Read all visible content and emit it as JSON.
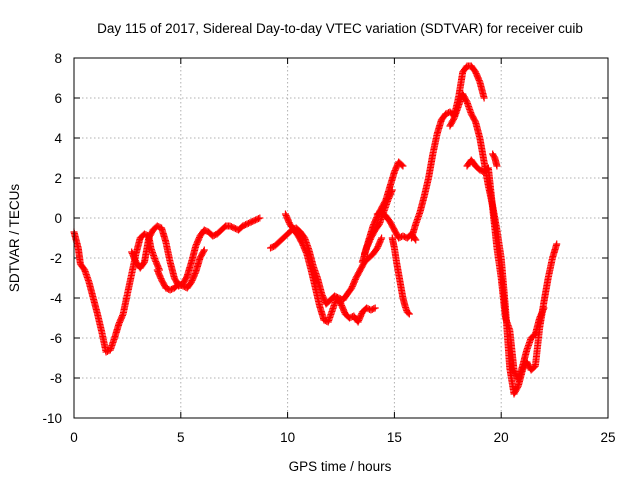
{
  "chart_data": {
    "type": "scatter",
    "title": "Day 115 of 2017, Sidereal Day-to-day VTEC variation (SDTVAR) for receiver cuib",
    "xlabel": "GPS time / hours",
    "ylabel": "SDTVAR / TECUs",
    "xlim": [
      0,
      25
    ],
    "ylim": [
      -10,
      8
    ],
    "xticks": [
      "0",
      "5",
      "10",
      "15",
      "20",
      "25"
    ],
    "yticks": [
      "-10",
      "-8",
      "-6",
      "-4",
      "-2",
      "0",
      "2",
      "4",
      "6",
      "8"
    ],
    "grid": true,
    "legend": "none",
    "marker": "plus",
    "color": "#ff0000",
    "series": [
      {
        "x": [
          0.0,
          0.2,
          0.3,
          0.5,
          0.7,
          0.9,
          1.1,
          1.3,
          1.5,
          1.7,
          1.9,
          2.1,
          2.3,
          2.5,
          2.7,
          2.9,
          3.1,
          3.3,
          3.5,
          3.6,
          3.8,
          4.0
        ],
        "y": [
          -0.7,
          -1.5,
          -2.3,
          -2.6,
          -3.2,
          -4.0,
          -4.8,
          -5.7,
          -6.7,
          -6.6,
          -6.0,
          -5.3,
          -4.8,
          -3.8,
          -2.8,
          -1.8,
          -1.0,
          -0.8,
          -0.9,
          -1.5,
          -2.1,
          -2.6
        ]
      },
      {
        "x": [
          2.7,
          2.9,
          3.1,
          3.3,
          3.5,
          3.7,
          3.9,
          4.1,
          4.3,
          4.5,
          4.7,
          4.9,
          5.1,
          5.3,
          5.5,
          5.7,
          5.9,
          6.1,
          6.3,
          6.5,
          6.7,
          6.9,
          7.1,
          7.3,
          7.5,
          7.7,
          7.9,
          8.1,
          8.3,
          8.5,
          8.7
        ],
        "y": [
          -1.7,
          -2.2,
          -2.5,
          -2.2,
          -1.0,
          -0.6,
          -0.4,
          -0.5,
          -1.2,
          -2.2,
          -3.0,
          -3.4,
          -3.3,
          -2.9,
          -2.2,
          -1.4,
          -0.9,
          -0.6,
          -0.7,
          -0.9,
          -0.8,
          -0.6,
          -0.4,
          -0.4,
          -0.5,
          -0.6,
          -0.4,
          -0.3,
          -0.2,
          -0.1,
          0.0
        ]
      },
      {
        "x": [
          3.9,
          4.1,
          4.3,
          4.5,
          4.7,
          4.9,
          5.1,
          5.3,
          5.5,
          5.7,
          5.9,
          6.1
        ],
        "y": [
          -2.6,
          -3.1,
          -3.5,
          -3.6,
          -3.5,
          -3.3,
          -3.4,
          -3.5,
          -3.2,
          -2.7,
          -2.0,
          -1.6
        ]
      },
      {
        "x": [
          9.2,
          9.4,
          9.6,
          9.8,
          10.0,
          10.2,
          10.4,
          10.6,
          10.8,
          11.0,
          11.2,
          11.4,
          11.6,
          11.8,
          12.0,
          12.2,
          12.4,
          12.6,
          12.8,
          13.0,
          13.2,
          13.4,
          13.6,
          13.8,
          14.0,
          14.2,
          14.4
        ],
        "y": [
          -1.5,
          -1.4,
          -1.2,
          -1.0,
          -0.8,
          -0.6,
          -0.5,
          -0.7,
          -1.0,
          -1.6,
          -2.4,
          -3.0,
          -3.8,
          -4.3,
          -4.1,
          -3.9,
          -4.0,
          -4.1,
          -3.8,
          -3.5,
          -3.0,
          -2.6,
          -2.2,
          -2.0,
          -1.8,
          -1.5,
          -1.0
        ]
      },
      {
        "x": [
          9.9,
          10.1,
          10.3,
          10.5,
          10.7,
          10.9,
          11.1,
          11.3,
          11.5,
          11.7,
          11.9,
          12.1,
          12.3,
          12.5,
          12.7,
          12.9,
          13.1,
          13.3,
          13.5,
          13.7,
          13.9,
          14.1
        ],
        "y": [
          0.2,
          -0.3,
          -0.6,
          -0.9,
          -1.3,
          -1.8,
          -2.6,
          -3.5,
          -4.4,
          -5.1,
          -5.2,
          -4.6,
          -4.0,
          -4.3,
          -4.8,
          -5.0,
          -4.9,
          -5.2,
          -4.7,
          -4.5,
          -4.6,
          -4.5
        ]
      },
      {
        "x": [
          13.5,
          13.7,
          13.9,
          14.1,
          14.3,
          14.5,
          14.7,
          14.9
        ],
        "y": [
          -2.2,
          -1.5,
          -1.0,
          -0.6,
          -0.3,
          0.3,
          0.9,
          1.4
        ]
      },
      {
        "x": [
          13.6,
          13.8,
          14.0,
          14.2,
          14.4,
          14.6,
          14.8,
          15.0,
          15.2,
          15.4
        ],
        "y": [
          -1.8,
          -1.1,
          -0.4,
          0.1,
          0.5,
          0.9,
          1.6,
          2.3,
          2.8,
          2.6
        ]
      },
      {
        "x": [
          14.2,
          14.4,
          14.6,
          14.8,
          15.0,
          15.2,
          15.4,
          15.6,
          15.8,
          16.0
        ],
        "y": [
          0.2,
          0.3,
          0.1,
          -0.2,
          -0.6,
          -1.0,
          -0.9,
          -1.0,
          -0.8,
          -1.1
        ]
      },
      {
        "x": [
          14.9,
          15.0,
          15.1,
          15.2,
          15.3,
          15.4,
          15.5,
          15.6,
          15.7
        ],
        "y": [
          -1.0,
          -1.5,
          -2.2,
          -2.8,
          -3.4,
          -4.0,
          -4.4,
          -4.7,
          -4.8
        ]
      },
      {
        "x": [
          15.8,
          16.0,
          16.2,
          16.4,
          16.6,
          16.8,
          17.0,
          17.2,
          17.4,
          17.6,
          17.8,
          18.0,
          18.2,
          18.4,
          18.6,
          18.8,
          19.0,
          19.2
        ],
        "y": [
          -1.0,
          -0.3,
          0.3,
          1.1,
          2.0,
          3.2,
          4.2,
          4.9,
          5.2,
          5.3,
          5.1,
          6.0,
          7.3,
          7.6,
          7.6,
          7.3,
          6.8,
          6.0
        ]
      },
      {
        "x": [
          17.6,
          17.8,
          18.0,
          18.2,
          18.4,
          18.6,
          18.8,
          19.0,
          19.2,
          19.4,
          19.6,
          19.8,
          20.0,
          20.2,
          20.4,
          20.6,
          20.8,
          21.0,
          21.2,
          21.4,
          21.6,
          21.8,
          22.0,
          22.2,
          22.4,
          22.6
        ],
        "y": [
          4.6,
          5.0,
          5.6,
          6.2,
          5.8,
          5.2,
          4.8,
          4.0,
          2.8,
          1.6,
          0.6,
          -0.6,
          -2.0,
          -4.5,
          -7.5,
          -8.8,
          -8.4,
          -7.6,
          -7.2,
          -7.6,
          -7.4,
          -5.5,
          -4.2,
          -3.0,
          -2.0,
          -1.3
        ]
      },
      {
        "x": [
          18.4,
          18.6,
          18.8,
          19.0,
          19.2,
          19.4,
          19.6,
          19.8,
          20.0,
          20.2,
          20.4,
          20.6,
          20.8,
          21.0,
          21.2,
          21.4,
          21.6,
          21.8,
          22.0
        ],
        "y": [
          2.6,
          2.9,
          2.6,
          2.4,
          2.3,
          2.5,
          0.5,
          -1.5,
          -3.0,
          -5.0,
          -5.6,
          -7.6,
          -8.1,
          -7.4,
          -6.6,
          -6.0,
          -5.8,
          -5.0,
          -4.5
        ]
      },
      {
        "x": [
          19.6,
          19.7,
          19.8
        ],
        "y": [
          3.2,
          3.0,
          2.6
        ]
      }
    ]
  }
}
